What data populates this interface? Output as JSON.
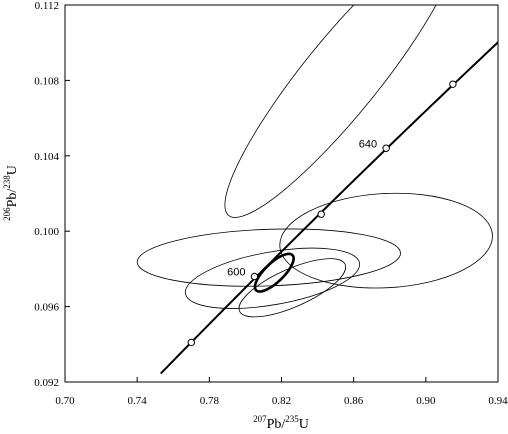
{
  "chart_data": {
    "type": "scatter",
    "subtype": "concordia_diagram_with_error_ellipses",
    "title": "",
    "xlabel": {
      "pb_mass": "207",
      "pb": "Pb",
      "slash": "/",
      "u_mass": "235",
      "u": "U"
    },
    "ylabel": {
      "pb_mass": "206",
      "pb": "Pb",
      "slash": "/",
      "u_mass": "238",
      "u": "U"
    },
    "xlim": [
      0.7,
      0.94
    ],
    "ylim": [
      0.092,
      0.112
    ],
    "x_ticks": [
      0.7,
      0.74,
      0.78,
      0.82,
      0.86,
      0.9,
      0.94
    ],
    "x_tick_labels": [
      "0.70",
      "0.74",
      "0.78",
      "0.82",
      "0.86",
      "0.90",
      "0.94"
    ],
    "y_ticks": [
      0.092,
      0.096,
      0.1,
      0.104,
      0.108,
      0.112
    ],
    "y_tick_labels": [
      "0.092",
      "0.096",
      "0.100",
      "0.104",
      "0.108",
      "0.112"
    ],
    "grid": false,
    "concordia": {
      "age_range_ma": [
        570,
        690
      ],
      "markers": [
        {
          "age_ma": 580,
          "x": 0.77,
          "y": 0.0941
        },
        {
          "age_ma": 600,
          "x": 0.805,
          "y": 0.0976
        },
        {
          "age_ma": 620,
          "x": 0.842,
          "y": 0.1009
        },
        {
          "age_ma": 640,
          "x": 0.878,
          "y": 0.1044
        },
        {
          "age_ma": 660,
          "x": 0.915,
          "y": 0.1078
        }
      ],
      "labels": [
        {
          "text": "600",
          "age_ma": 600
        },
        {
          "text": "640",
          "age_ma": 640
        }
      ]
    },
    "ellipses": [
      {
        "cx": 0.853,
        "cy": 0.1082,
        "rx": 0.099,
        "ry": 0.002,
        "angle_deg": 51,
        "bold": false
      },
      {
        "cx": 0.878,
        "cy": 0.0995,
        "rx": 0.059,
        "ry": 0.0025,
        "angle_deg": 3,
        "bold": false
      },
      {
        "cx": 0.813,
        "cy": 0.0986,
        "rx": 0.073,
        "ry": 0.0015,
        "angle_deg": 2,
        "bold": false
      },
      {
        "cx": 0.815,
        "cy": 0.0975,
        "rx": 0.049,
        "ry": 0.0014,
        "angle_deg": 10,
        "bold": false
      },
      {
        "cx": 0.826,
        "cy": 0.097,
        "rx": 0.032,
        "ry": 0.001,
        "angle_deg": 24,
        "bold": false
      },
      {
        "cx": 0.816,
        "cy": 0.0978,
        "rx": 0.014,
        "ry": 0.0005,
        "angle_deg": 44,
        "bold": true
      }
    ]
  }
}
